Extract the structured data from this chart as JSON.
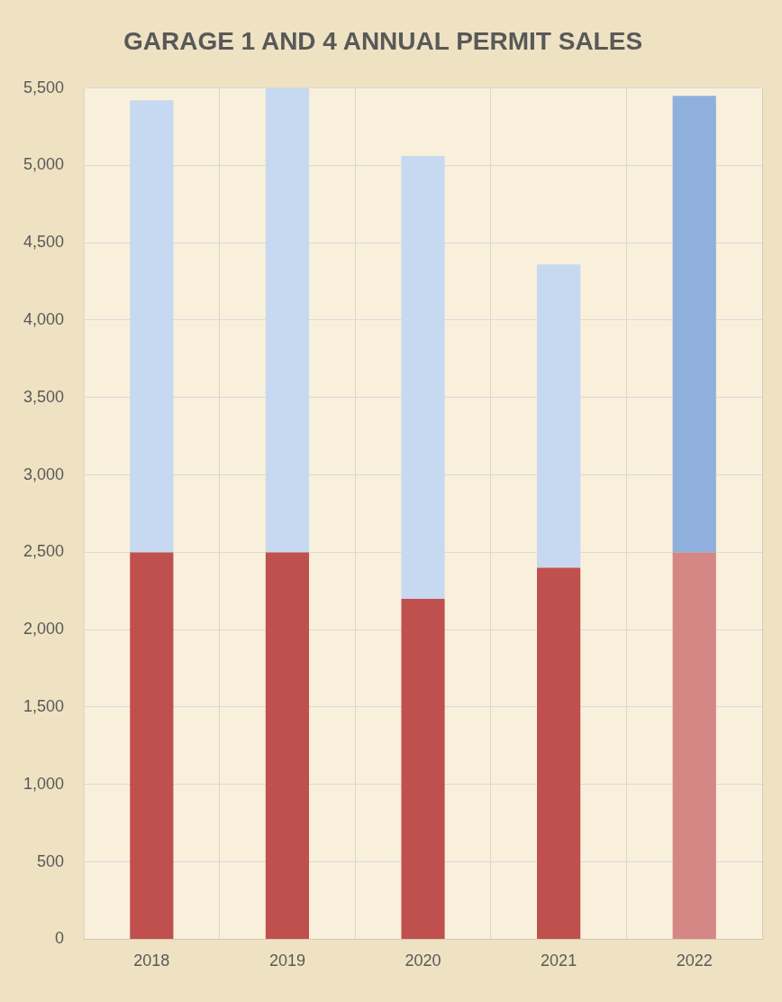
{
  "chart_data": {
    "type": "bar",
    "title": "GARAGE 1 AND 4 ANNUAL PERMIT SALES",
    "categories": [
      "2018",
      "2019",
      "2020",
      "2021",
      "2022"
    ],
    "stacked": true,
    "series": [
      {
        "colors": [
          "#c0504d",
          "#c0504d",
          "#c0504d",
          "#c0504d",
          "#d58785"
        ],
        "values": [
          2500,
          2500,
          2200,
          2400,
          2500
        ]
      },
      {
        "colors": [
          "#c6d9f1",
          "#c6d9f1",
          "#c6d9f1",
          "#c6d9f1",
          "#8fb0dc"
        ],
        "values": [
          2920,
          3000,
          2860,
          1960,
          2950
        ]
      }
    ],
    "ylim": [
      0,
      5500
    ],
    "yticks": [
      0,
      500,
      {
        "value": 1000,
        "label": "1,000"
      },
      {
        "value": 1500,
        "label": "1,500"
      },
      {
        "value": 2000,
        "label": "2,000"
      },
      {
        "value": 2500,
        "label": "2,500"
      },
      {
        "value": 3000,
        "label": "3,000"
      },
      {
        "value": 3500,
        "label": "3,500"
      },
      {
        "value": 4000,
        "label": "4,000"
      },
      {
        "value": 4500,
        "label": "4,500"
      },
      {
        "value": 5000,
        "label": "5,000"
      },
      {
        "value": 5500,
        "label": "5,500"
      }
    ],
    "grid": true
  }
}
